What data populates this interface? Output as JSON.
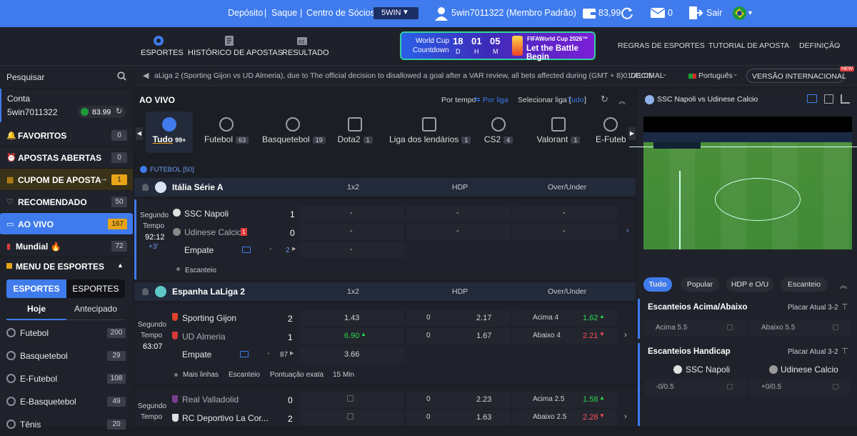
{
  "topbar": {
    "deposit": "Depósito",
    "sep": "|",
    "withdraw": "Saque",
    "members": "Centro de Sócios",
    "currency": "5WIN",
    "user": "5win7011322 (Membro Padrão)",
    "balance": "83,99",
    "messages": "0",
    "logout": "Sair"
  },
  "nav": {
    "sports": "ESPORTES",
    "history": "HISTÓRICO DE APOSTAS",
    "result": "RESULTADO",
    "rules": "REGRAS DE ESPORTES",
    "tutorial": "TUTORIAL DE APOSTA",
    "settings": "DEFINIÇÃO"
  },
  "promo": {
    "line1": "World Cup",
    "line2": "Countdown",
    "days": "18",
    "days_l": "D",
    "hours": "01",
    "hours_l": "H",
    "mins": "05",
    "mins_l": "M",
    "brand": "FIFAWorld Cup 2026™",
    "slogan": "Let the Battle Begin"
  },
  "sidebar": {
    "search": "Pesquisar",
    "account_label": "Conta",
    "account_id": "5win7011322",
    "balance": "83.99",
    "items": [
      {
        "label": "FAVORITOS",
        "count": "0"
      },
      {
        "label": "APOSTAS ABERTAS",
        "count": "0"
      },
      {
        "label": "CUPOM DE APOSTA",
        "count": "1"
      },
      {
        "label": "RECOMENDADO",
        "count": "50"
      },
      {
        "label": "AO VIVO",
        "count": "167"
      },
      {
        "label": "Mundial 🔥",
        "count": "72"
      }
    ],
    "menu_title": "MENU DE ESPORTES",
    "tab1": "ESPORTES",
    "tab2": "ESPORTES",
    "day1": "Hoje",
    "day2": "Antecipado",
    "sports": [
      {
        "label": "Futebol",
        "count": "200"
      },
      {
        "label": "Basquetebol",
        "count": "29"
      },
      {
        "label": "E-Futebol",
        "count": "108"
      },
      {
        "label": "E-Basquetebol",
        "count": "49"
      },
      {
        "label": "Tênis",
        "count": "20"
      }
    ]
  },
  "ticker": {
    "text": "aLiga 2 (Sporting Gijon vs UD Almeria), due to The official decision to disallowed a goal after a VAR review, all bets affected during (GMT + 8)01:41:05",
    "odds_format": "DECIMAL",
    "language": "Português",
    "version": "VERSÃO INTERNACIONAL",
    "new": "NEW"
  },
  "main": {
    "live": "AO VIVO",
    "sort_time": "Por tempo",
    "sort_league": "Por liga",
    "select_league": "Selecionar liga [",
    "select_all": "Tudo",
    "select_close": "]",
    "categories": [
      {
        "label": "Tudo",
        "count": "99+"
      },
      {
        "label": "Futebol",
        "count": "63"
      },
      {
        "label": "Basquetebol",
        "count": "19"
      },
      {
        "label": "Dota2",
        "count": "1"
      },
      {
        "label": "Liga dos lendários",
        "count": "1"
      },
      {
        "label": "CS2",
        "count": "4"
      },
      {
        "label": "Valorant",
        "count": "1"
      },
      {
        "label": "E-Futebo",
        "count": ""
      }
    ],
    "section": "FUTEBOL [50]",
    "col1": "1x2",
    "col2": "HDP",
    "col3": "Over/Under",
    "league1": "Itália Série A",
    "league2": "Espanha LaLiga 2",
    "m1": {
      "period": "Segundo",
      "period2": "Tempo",
      "time": "92:12",
      "extra": "+3'",
      "home": "SSC Napoli",
      "away": "Udinese Calcio",
      "hs": "1",
      "as": "0",
      "card": "1",
      "draw": "Empate",
      "dash": "-",
      "count": "2",
      "corner": "Escanteio"
    },
    "m2": {
      "period": "Segundo",
      "period2": "Tempo",
      "time": "63:07",
      "home": "Sporting Gijon",
      "away": "UD Almeria",
      "hs": "2",
      "as": "1",
      "draw": "Empate",
      "count": "87",
      "o1": "1.43",
      "o2": "6.90",
      "o3": "3.66",
      "hdp1": "0",
      "hdp1o": "2.17",
      "hdp2": "0",
      "hdp2o": "1.67",
      "ou1": "Acima 4",
      "ou1o": "1.62",
      "ou2": "Abaixo 4",
      "ou2o": "2.21",
      "more": "Mais linhas",
      "corner": "Escanteio",
      "exact": "Pontuação exata",
      "min15": "15 Min"
    },
    "m3": {
      "period": "Segundo",
      "period2": "Tempo",
      "home": "Real Valladolid",
      "away": "RC Deportivo La Cor...",
      "hs": "0",
      "as": "2",
      "hdp1": "0",
      "hdp1o": "2.23",
      "hdp2": "0",
      "hdp2o": "1.63",
      "ou1": "Acima 2.5",
      "ou1o": "1.58",
      "ou2": "Abaixo 2.5",
      "ou2o": "2.28"
    }
  },
  "right": {
    "match": "SSC Napoli vs Udinese Calcio",
    "tabs": [
      "Tudo",
      "Popular",
      "HDP e O/U",
      "Escanteio"
    ],
    "m1title": "Escanteios Acima/Abaixo",
    "m1score": "Placar Atual 3-2",
    "over": "Acima 5.5",
    "under": "Abaixo 5.5",
    "m2title": "Escanteios Handicap",
    "m2score": "Placar Atual 3-2",
    "home": "SSC Napoli",
    "away": "Udinese Calcio",
    "h1": "-0/0.5",
    "h2": "+0/0.5"
  },
  "colors": {
    "accent": "#3f7bec",
    "live": "#3f7bec",
    "up": "#2bd64f",
    "down": "#ff4d5a"
  }
}
